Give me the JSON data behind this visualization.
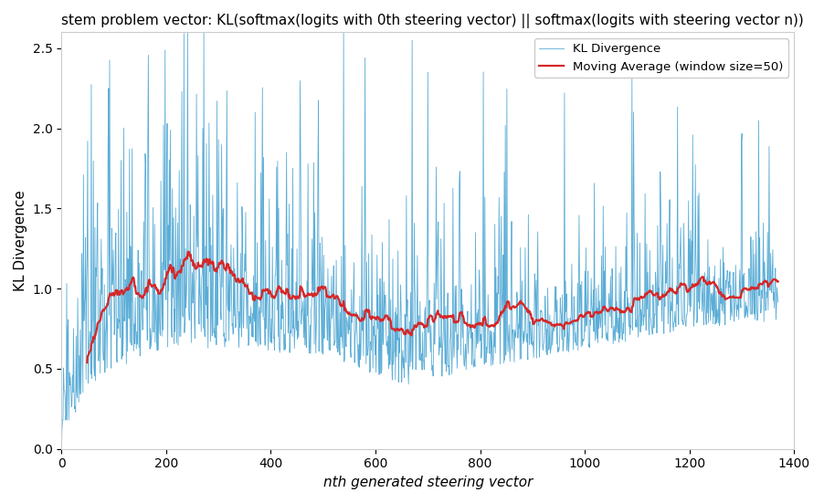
{
  "title": "stem problem vector: KL(softmax(logits with 0th steering vector) || softmax(logits with steering vector n))",
  "xlabel": "nth generated steering vector",
  "ylabel": "KL Divergence",
  "xlim": [
    0,
    1400
  ],
  "ylim": [
    0.0,
    2.6
  ],
  "yticks": [
    0.0,
    0.5,
    1.0,
    1.5,
    2.0,
    2.5
  ],
  "xticks": [
    0,
    200,
    400,
    600,
    800,
    1000,
    1200,
    1400
  ],
  "kl_color": "#5badd6",
  "ma_color": "#d62728",
  "ma_label": "Moving Average (window size=50)",
  "kl_label": "KL Divergence",
  "window_size": 50,
  "n_points": 1370,
  "seed": 17,
  "title_fontsize": 11,
  "axis_label_fontsize": 11,
  "xlabel_style": "italic",
  "background_color": "#ffffff",
  "legend_loc": "upper right"
}
